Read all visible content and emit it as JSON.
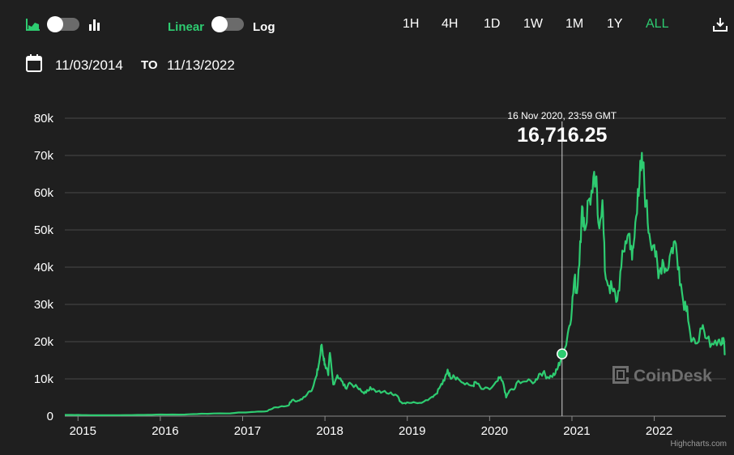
{
  "toolbar": {
    "icons": {
      "area": "area-chart-icon",
      "bars": "bar-chart-icon",
      "download": "download-icon"
    },
    "scale": {
      "linear_label": "Linear",
      "log_label": "Log"
    },
    "ranges": [
      {
        "label": "1H",
        "active": false
      },
      {
        "label": "4H",
        "active": false
      },
      {
        "label": "1D",
        "active": false
      },
      {
        "label": "1W",
        "active": false
      },
      {
        "label": "1M",
        "active": false
      },
      {
        "label": "1Y",
        "active": false
      },
      {
        "label": "ALL",
        "active": true
      }
    ]
  },
  "date_range": {
    "icon": "calendar-icon",
    "from": "11/03/2014",
    "to_label": "TO",
    "to": "11/13/2022"
  },
  "colors": {
    "accent": "#2ecc71",
    "background": "#1f1f1f",
    "grid": "#4a4a4a",
    "watermark": "#6e6e6e"
  },
  "chart_data": {
    "type": "line",
    "title": "",
    "xlabel": "",
    "ylabel": "",
    "ylim": [
      0,
      80000
    ],
    "yticks": [
      0,
      10000,
      20000,
      30000,
      40000,
      50000,
      60000,
      70000,
      80000
    ],
    "ytick_labels": [
      "0",
      "10k",
      "20k",
      "30k",
      "40k",
      "50k",
      "60k",
      "70k",
      "80k"
    ],
    "xlim": [
      2014.84,
      2022.87
    ],
    "xticks": [
      2015,
      2016,
      2017,
      2018,
      2019,
      2020,
      2021,
      2022
    ],
    "xtick_labels": [
      "2015",
      "2016",
      "2017",
      "2018",
      "2019",
      "2020",
      "2021",
      "2022"
    ],
    "grid": true,
    "legend": "none",
    "series": [
      {
        "name": "",
        "points": [
          [
            2014.84,
            330
          ],
          [
            2015.0,
            320
          ],
          [
            2015.2,
            240
          ],
          [
            2015.5,
            260
          ],
          [
            2015.8,
            330
          ],
          [
            2016.0,
            430
          ],
          [
            2016.3,
            440
          ],
          [
            2016.5,
            650
          ],
          [
            2016.8,
            720
          ],
          [
            2017.0,
            980
          ],
          [
            2017.15,
            1150
          ],
          [
            2017.3,
            1350
          ],
          [
            2017.38,
            2300
          ],
          [
            2017.45,
            2500
          ],
          [
            2017.55,
            2800
          ],
          [
            2017.6,
            4300
          ],
          [
            2017.66,
            4000
          ],
          [
            2017.72,
            4500
          ],
          [
            2017.8,
            6500
          ],
          [
            2017.85,
            7500
          ],
          [
            2017.9,
            11000
          ],
          [
            2017.93,
            14500
          ],
          [
            2017.96,
            19200
          ],
          [
            2017.98,
            16000
          ],
          [
            2018.0,
            14000
          ],
          [
            2018.04,
            11000
          ],
          [
            2018.06,
            17000
          ],
          [
            2018.1,
            8500
          ],
          [
            2018.15,
            11000
          ],
          [
            2018.2,
            9500
          ],
          [
            2018.25,
            7500
          ],
          [
            2018.3,
            9000
          ],
          [
            2018.4,
            7500
          ],
          [
            2018.45,
            6500
          ],
          [
            2018.5,
            6300
          ],
          [
            2018.55,
            7800
          ],
          [
            2018.62,
            6500
          ],
          [
            2018.7,
            6500
          ],
          [
            2018.8,
            6400
          ],
          [
            2018.87,
            5600
          ],
          [
            2018.92,
            3800
          ],
          [
            2018.96,
            3500
          ],
          [
            2019.0,
            3700
          ],
          [
            2019.1,
            3600
          ],
          [
            2019.2,
            3900
          ],
          [
            2019.3,
            5200
          ],
          [
            2019.35,
            6000
          ],
          [
            2019.4,
            8000
          ],
          [
            2019.45,
            9500
          ],
          [
            2019.49,
            12500
          ],
          [
            2019.52,
            10500
          ],
          [
            2019.56,
            11000
          ],
          [
            2019.62,
            10000
          ],
          [
            2019.7,
            8500
          ],
          [
            2019.8,
            8200
          ],
          [
            2019.83,
            9200
          ],
          [
            2019.9,
            7300
          ],
          [
            2020.0,
            7200
          ],
          [
            2020.1,
            9500
          ],
          [
            2020.12,
            10300
          ],
          [
            2020.17,
            8500
          ],
          [
            2020.2,
            5000
          ],
          [
            2020.24,
            6800
          ],
          [
            2020.3,
            7200
          ],
          [
            2020.35,
            9500
          ],
          [
            2020.45,
            9300
          ],
          [
            2020.55,
            9200
          ],
          [
            2020.6,
            11300
          ],
          [
            2020.65,
            11700
          ],
          [
            2020.7,
            10500
          ],
          [
            2020.75,
            10700
          ],
          [
            2020.8,
            11500
          ],
          [
            2020.83,
            13100
          ],
          [
            2020.87,
            15500
          ],
          [
            2020.88,
            16716
          ],
          [
            2020.92,
            18500
          ],
          [
            2020.96,
            23500
          ],
          [
            2021.0,
            29000
          ],
          [
            2021.03,
            37000
          ],
          [
            2021.06,
            33000
          ],
          [
            2021.1,
            47000
          ],
          [
            2021.13,
            56000
          ],
          [
            2021.16,
            50000
          ],
          [
            2021.2,
            58000
          ],
          [
            2021.25,
            60000
          ],
          [
            2021.29,
            63500
          ],
          [
            2021.32,
            52000
          ],
          [
            2021.37,
            58000
          ],
          [
            2021.4,
            39000
          ],
          [
            2021.45,
            35000
          ],
          [
            2021.5,
            33500
          ],
          [
            2021.55,
            31000
          ],
          [
            2021.6,
            40000
          ],
          [
            2021.65,
            47000
          ],
          [
            2021.7,
            49000
          ],
          [
            2021.73,
            42000
          ],
          [
            2021.76,
            48000
          ],
          [
            2021.8,
            61000
          ],
          [
            2021.84,
            66000
          ],
          [
            2021.86,
            67500
          ],
          [
            2021.9,
            57000
          ],
          [
            2021.94,
            49000
          ],
          [
            2022.0,
            46000
          ],
          [
            2022.05,
            37000
          ],
          [
            2022.1,
            42000
          ],
          [
            2022.15,
            39000
          ],
          [
            2022.2,
            44000
          ],
          [
            2022.25,
            47000
          ],
          [
            2022.3,
            40000
          ],
          [
            2022.35,
            31000
          ],
          [
            2022.4,
            29500
          ],
          [
            2022.45,
            20000
          ],
          [
            2022.5,
            19500
          ],
          [
            2022.58,
            23500
          ],
          [
            2022.62,
            21000
          ],
          [
            2022.7,
            19500
          ],
          [
            2022.78,
            20500
          ],
          [
            2022.82,
            19300
          ],
          [
            2022.84,
            21000
          ],
          [
            2022.86,
            16716
          ]
        ]
      }
    ],
    "tooltip": {
      "date": "16 Nov 2020, 23:59 GMT",
      "value": "16,716.25",
      "x": 2020.88,
      "y": 16716.25
    },
    "watermark": "CoinDesk",
    "credit": "Highcharts.com"
  }
}
